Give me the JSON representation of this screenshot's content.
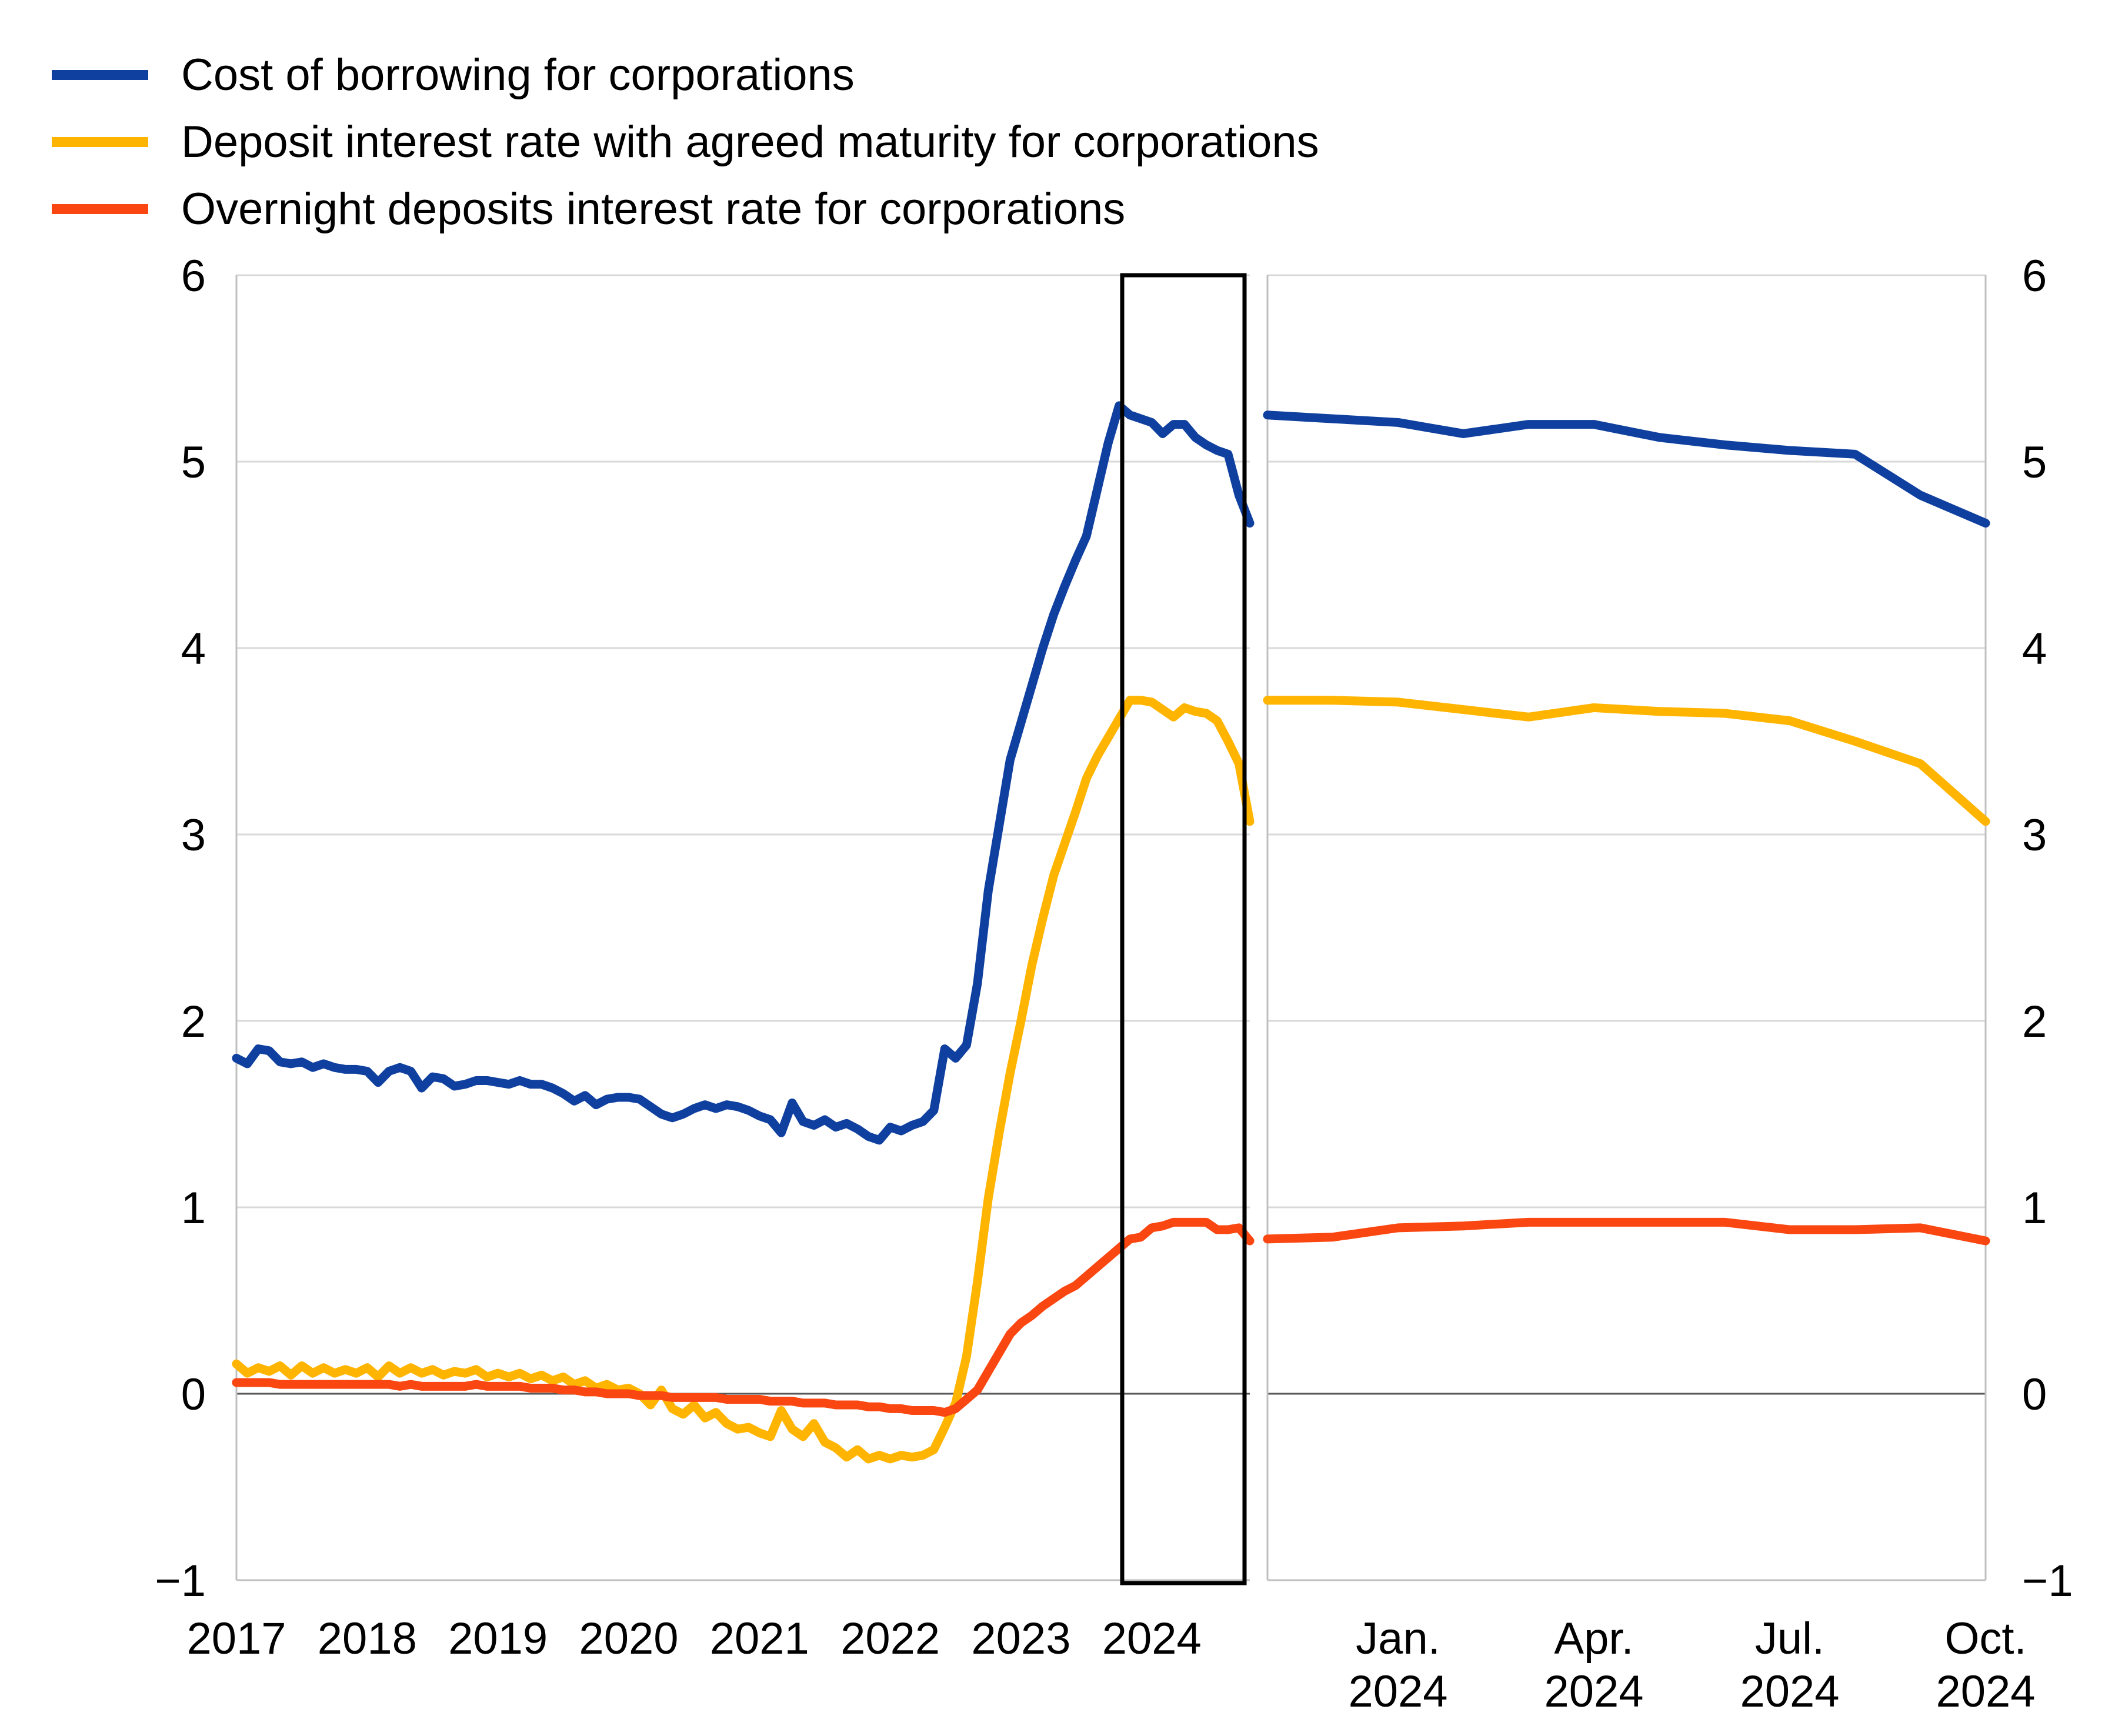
{
  "page": {
    "background": "#ffffff",
    "text_color": "#000000"
  },
  "chart_data": {
    "type": "line",
    "title": "",
    "frequency": "monthly",
    "x_start": "Jan. 2017",
    "x_end": "Oct. 2024",
    "ylim": [
      -1,
      6
    ],
    "y_ticks": [
      6,
      5,
      4,
      3,
      2,
      1,
      0,
      -1
    ],
    "y_tick_labels": [
      "6",
      "5",
      "4",
      "3",
      "2",
      "1",
      "0",
      "−1"
    ],
    "y_axis_sides": "both",
    "grid": "horizontal",
    "grid_color": "#d9d9d9",
    "axis_color": "#bfbfbf",
    "zero_line_color": "#595959",
    "legend_position": "top-left",
    "highlight_box": {
      "from": "Nov. 2023",
      "to": "Oct. 2024",
      "color": "#000000"
    },
    "panels": [
      {
        "id": "full-history",
        "x_tick_labels": [
          "2017",
          "2018",
          "2019",
          "2020",
          "2021",
          "2022",
          "2023",
          "2024"
        ]
      },
      {
        "id": "zoom-last-12-months",
        "window_months": 12,
        "x_ticks": [
          {
            "line1": "Jan.",
            "line2": "2024",
            "month_offset": 2
          },
          {
            "line1": "Apr.",
            "line2": "2024",
            "month_offset": 5
          },
          {
            "line1": "Jul.",
            "line2": "2024",
            "month_offset": 8
          },
          {
            "line1": "Oct.",
            "line2": "2024",
            "month_offset": 11
          }
        ]
      }
    ],
    "series": [
      {
        "name": "Cost of borrowing for corporations",
        "color": "#10409f",
        "values": [
          1.8,
          1.77,
          1.85,
          1.84,
          1.78,
          1.77,
          1.78,
          1.75,
          1.77,
          1.75,
          1.74,
          1.74,
          1.73,
          1.67,
          1.73,
          1.75,
          1.73,
          1.64,
          1.7,
          1.69,
          1.65,
          1.66,
          1.68,
          1.68,
          1.67,
          1.66,
          1.68,
          1.66,
          1.66,
          1.64,
          1.61,
          1.57,
          1.6,
          1.55,
          1.58,
          1.59,
          1.59,
          1.58,
          1.54,
          1.5,
          1.48,
          1.5,
          1.53,
          1.55,
          1.53,
          1.55,
          1.54,
          1.52,
          1.49,
          1.47,
          1.4,
          1.56,
          1.46,
          1.44,
          1.47,
          1.43,
          1.45,
          1.42,
          1.38,
          1.36,
          1.43,
          1.41,
          1.44,
          1.46,
          1.52,
          1.85,
          1.8,
          1.87,
          2.2,
          2.7,
          3.05,
          3.4,
          3.6,
          3.8,
          4.0,
          4.18,
          4.33,
          4.47,
          4.6,
          4.85,
          5.1,
          5.3,
          5.25,
          5.23,
          5.21,
          5.15,
          5.2,
          5.2,
          5.13,
          5.09,
          5.06,
          5.04,
          4.82,
          4.67
        ]
      },
      {
        "name": "Deposit interest rate with agreed maturity for corporations",
        "color": "#ffb400",
        "values": [
          0.16,
          0.11,
          0.14,
          0.12,
          0.15,
          0.1,
          0.15,
          0.11,
          0.14,
          0.11,
          0.13,
          0.11,
          0.14,
          0.09,
          0.15,
          0.11,
          0.14,
          0.11,
          0.13,
          0.1,
          0.12,
          0.11,
          0.13,
          0.09,
          0.11,
          0.09,
          0.11,
          0.08,
          0.1,
          0.07,
          0.09,
          0.05,
          0.07,
          0.03,
          0.05,
          0.02,
          0.03,
          0.0,
          -0.06,
          0.02,
          -0.08,
          -0.11,
          -0.06,
          -0.13,
          -0.1,
          -0.16,
          -0.19,
          -0.18,
          -0.21,
          -0.23,
          -0.09,
          -0.19,
          -0.23,
          -0.16,
          -0.26,
          -0.29,
          -0.34,
          -0.3,
          -0.35,
          -0.33,
          -0.35,
          -0.33,
          -0.34,
          -0.33,
          -0.3,
          -0.18,
          -0.05,
          0.2,
          0.6,
          1.05,
          1.4,
          1.72,
          2.0,
          2.3,
          2.55,
          2.78,
          2.95,
          3.12,
          3.3,
          3.42,
          3.52,
          3.62,
          3.72,
          3.72,
          3.71,
          3.67,
          3.63,
          3.68,
          3.66,
          3.65,
          3.61,
          3.5,
          3.38,
          3.07
        ]
      },
      {
        "name": "Overnight deposits interest rate for corporations",
        "color": "#fa4611",
        "values": [
          0.06,
          0.06,
          0.06,
          0.06,
          0.05,
          0.05,
          0.05,
          0.05,
          0.05,
          0.05,
          0.05,
          0.05,
          0.05,
          0.05,
          0.05,
          0.04,
          0.05,
          0.04,
          0.04,
          0.04,
          0.04,
          0.04,
          0.05,
          0.04,
          0.04,
          0.04,
          0.04,
          0.03,
          0.03,
          0.03,
          0.02,
          0.02,
          0.01,
          0.01,
          0.0,
          0.0,
          0.0,
          -0.01,
          -0.01,
          -0.01,
          -0.02,
          -0.02,
          -0.02,
          -0.02,
          -0.02,
          -0.03,
          -0.03,
          -0.03,
          -0.03,
          -0.04,
          -0.04,
          -0.04,
          -0.05,
          -0.05,
          -0.05,
          -0.06,
          -0.06,
          -0.06,
          -0.07,
          -0.07,
          -0.08,
          -0.08,
          -0.09,
          -0.09,
          -0.09,
          -0.1,
          -0.08,
          -0.03,
          0.02,
          0.12,
          0.22,
          0.32,
          0.38,
          0.42,
          0.47,
          0.51,
          0.55,
          0.58,
          0.63,
          0.68,
          0.73,
          0.78,
          0.83,
          0.84,
          0.89,
          0.9,
          0.92,
          0.92,
          0.92,
          0.92,
          0.88,
          0.88,
          0.89,
          0.82
        ]
      }
    ]
  }
}
